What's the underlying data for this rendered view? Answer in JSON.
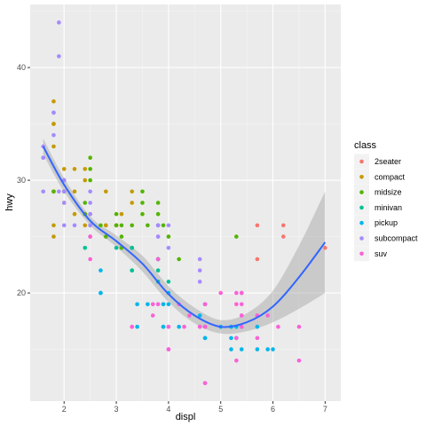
{
  "chart_data": {
    "type": "scatter",
    "xlabel": "displ",
    "ylabel": "hwy",
    "xlim": [
      1.35,
      7.3
    ],
    "ylim": [
      10.4,
      45.6
    ],
    "x_ticks": [
      2,
      3,
      4,
      5,
      6,
      7
    ],
    "y_ticks": [
      20,
      30,
      40
    ],
    "grid": true,
    "legend_title": "class",
    "legend_position": "right",
    "series": [
      {
        "name": "2seater",
        "color": "#F8766D",
        "points": [
          [
            5.7,
            26
          ],
          [
            5.7,
            23
          ],
          [
            6.2,
            26
          ],
          [
            6.2,
            25
          ],
          [
            7.0,
            24
          ]
        ]
      },
      {
        "name": "compact",
        "color": "#C49A00",
        "points": [
          [
            1.8,
            29
          ],
          [
            1.8,
            29
          ],
          [
            2.0,
            31
          ],
          [
            2.0,
            30
          ],
          [
            2.8,
            26
          ],
          [
            2.8,
            26
          ],
          [
            3.1,
            27
          ],
          [
            1.8,
            26
          ],
          [
            1.8,
            25
          ],
          [
            2.0,
            28
          ],
          [
            2.0,
            29
          ],
          [
            2.8,
            29
          ],
          [
            2.4,
            27
          ],
          [
            2.4,
            30
          ],
          [
            3.0,
            26
          ],
          [
            3.3,
            29
          ],
          [
            1.8,
            33
          ],
          [
            1.8,
            35
          ],
          [
            1.8,
            37
          ],
          [
            1.8,
            35
          ],
          [
            2.0,
            29
          ],
          [
            2.2,
            27
          ],
          [
            2.2,
            31
          ],
          [
            2.4,
            31
          ],
          [
            2.4,
            26
          ],
          [
            3.0,
            26
          ],
          [
            3.3,
            28
          ],
          [
            2.5,
            25
          ],
          [
            2.5,
            27
          ],
          [
            2.2,
            29
          ]
        ]
      },
      {
        "name": "midsize",
        "color": "#53B400",
        "points": [
          [
            2.4,
            27
          ],
          [
            2.5,
            30
          ],
          [
            2.5,
            32
          ],
          [
            3.0,
            26
          ],
          [
            3.3,
            26
          ],
          [
            3.5,
            29
          ],
          [
            3.5,
            28
          ],
          [
            3.5,
            27
          ],
          [
            3.6,
            26
          ],
          [
            3.8,
            28
          ],
          [
            3.8,
            26
          ],
          [
            3.8,
            27
          ],
          [
            3.9,
            26
          ],
          [
            4.0,
            25
          ],
          [
            4.2,
            23
          ],
          [
            5.3,
            25
          ],
          [
            2.0,
            29
          ],
          [
            2.5,
            31
          ],
          [
            2.4,
            28
          ],
          [
            2.7,
            26
          ],
          [
            3.1,
            26
          ],
          [
            3.8,
            23
          ],
          [
            3.1,
            25
          ],
          [
            3.1,
            24
          ],
          [
            1.8,
            29
          ],
          [
            2.8,
            25
          ],
          [
            3.0,
            27
          ]
        ]
      },
      {
        "name": "minivan",
        "color": "#00C094",
        "points": [
          [
            2.4,
            24
          ],
          [
            3.0,
            24
          ],
          [
            3.3,
            22
          ],
          [
            3.3,
            22
          ],
          [
            3.3,
            24
          ],
          [
            3.3,
            24
          ],
          [
            3.8,
            23
          ],
          [
            3.8,
            21
          ],
          [
            3.8,
            22
          ],
          [
            4.0,
            21
          ],
          [
            3.8,
            23
          ]
        ]
      },
      {
        "name": "pickup",
        "color": "#00B6EB",
        "points": [
          [
            2.7,
            20
          ],
          [
            2.7,
            20
          ],
          [
            2.7,
            22
          ],
          [
            3.4,
            19
          ],
          [
            3.4,
            17
          ],
          [
            3.9,
            17
          ],
          [
            3.9,
            17
          ],
          [
            4.7,
            17
          ],
          [
            4.7,
            16
          ],
          [
            4.7,
            17
          ],
          [
            5.2,
            17
          ],
          [
            5.2,
            15
          ],
          [
            5.7,
            15
          ],
          [
            5.9,
            15
          ],
          [
            4.2,
            17
          ],
          [
            4.6,
            17
          ],
          [
            5.4,
            17
          ],
          [
            5.4,
            15
          ],
          [
            4.0,
            20
          ],
          [
            4.7,
            19
          ],
          [
            4.7,
            16
          ],
          [
            3.9,
            19
          ],
          [
            5.2,
            16
          ],
          [
            5.2,
            17
          ],
          [
            5.7,
            17
          ],
          [
            4.0,
            19
          ],
          [
            4.6,
            18
          ],
          [
            5.0,
            17
          ],
          [
            5.3,
            16
          ],
          [
            5.3,
            17
          ],
          [
            6.0,
            15
          ],
          [
            3.6,
            19
          ],
          [
            3.9,
            19
          ]
        ]
      },
      {
        "name": "subcompact",
        "color": "#A58AFF",
        "points": [
          [
            1.6,
            33
          ],
          [
            1.6,
            32
          ],
          [
            1.6,
            32
          ],
          [
            1.6,
            29
          ],
          [
            1.8,
            34
          ],
          [
            1.8,
            36
          ],
          [
            1.8,
            36
          ],
          [
            1.9,
            44
          ],
          [
            1.9,
            41
          ],
          [
            1.9,
            29
          ],
          [
            2.0,
            29
          ],
          [
            2.0,
            28
          ],
          [
            2.0,
            26
          ],
          [
            2.0,
            30
          ],
          [
            2.5,
            27
          ],
          [
            2.5,
            25
          ],
          [
            2.2,
            26
          ],
          [
            2.5,
            26
          ],
          [
            2.5,
            28
          ],
          [
            3.8,
            26
          ],
          [
            3.8,
            25
          ],
          [
            4.0,
            24
          ],
          [
            4.6,
            23
          ],
          [
            4.6,
            22
          ],
          [
            5.4,
            20
          ],
          [
            3.8,
            26
          ],
          [
            3.8,
            25
          ],
          [
            4.0,
            26
          ],
          [
            4.6,
            21
          ],
          [
            5.4,
            18
          ],
          [
            2.5,
            29
          ],
          [
            2.5,
            26
          ],
          [
            2.0,
            30
          ]
        ]
      },
      {
        "name": "suv",
        "color": "#FB61D7",
        "points": [
          [
            2.5,
            23
          ],
          [
            2.5,
            25
          ],
          [
            3.3,
            17
          ],
          [
            3.7,
            19
          ],
          [
            4.0,
            17
          ],
          [
            4.0,
            15
          ],
          [
            4.7,
            17
          ],
          [
            4.7,
            12
          ],
          [
            4.7,
            12
          ],
          [
            4.7,
            17
          ],
          [
            4.6,
            17
          ],
          [
            5.3,
            19
          ],
          [
            5.3,
            20
          ],
          [
            5.4,
            17
          ],
          [
            5.4,
            20
          ],
          [
            5.7,
            18
          ],
          [
            6.1,
            17
          ],
          [
            6.5,
            17
          ],
          [
            6.5,
            14
          ],
          [
            4.3,
            17
          ],
          [
            5.3,
            16
          ],
          [
            5.3,
            14
          ],
          [
            5.7,
            18
          ],
          [
            4.0,
            17
          ],
          [
            4.2,
            19
          ],
          [
            4.4,
            18
          ],
          [
            4.6,
            17
          ],
          [
            5.4,
            19
          ],
          [
            5.4,
            18
          ],
          [
            4.7,
            19
          ],
          [
            3.7,
            18
          ],
          [
            3.3,
            17
          ],
          [
            3.8,
            19
          ],
          [
            4.0,
            15
          ],
          [
            5.9,
            18
          ],
          [
            4.7,
            19
          ],
          [
            5.0,
            20
          ],
          [
            5.7,
            16
          ],
          [
            3.8,
            23
          ]
        ]
      }
    ],
    "smooth": {
      "color": "#3366FF",
      "band_color": "#999999",
      "x": [
        1.6,
        2.0,
        2.5,
        3.0,
        3.5,
        4.0,
        4.5,
        5.0,
        5.5,
        6.0,
        6.5,
        7.0
      ],
      "y": [
        33.0,
        29.6,
        26.4,
        24.6,
        22.6,
        19.9,
        18.0,
        17.0,
        17.4,
        18.8,
        21.4,
        24.5
      ],
      "lower": [
        32.3,
        29.0,
        26.0,
        24.1,
        21.9,
        19.2,
        17.3,
        16.4,
        16.6,
        17.4,
        18.6,
        20.0
      ],
      "upper": [
        33.7,
        30.2,
        26.8,
        25.1,
        23.3,
        20.6,
        18.7,
        17.6,
        18.2,
        20.2,
        24.2,
        29.0
      ]
    }
  }
}
